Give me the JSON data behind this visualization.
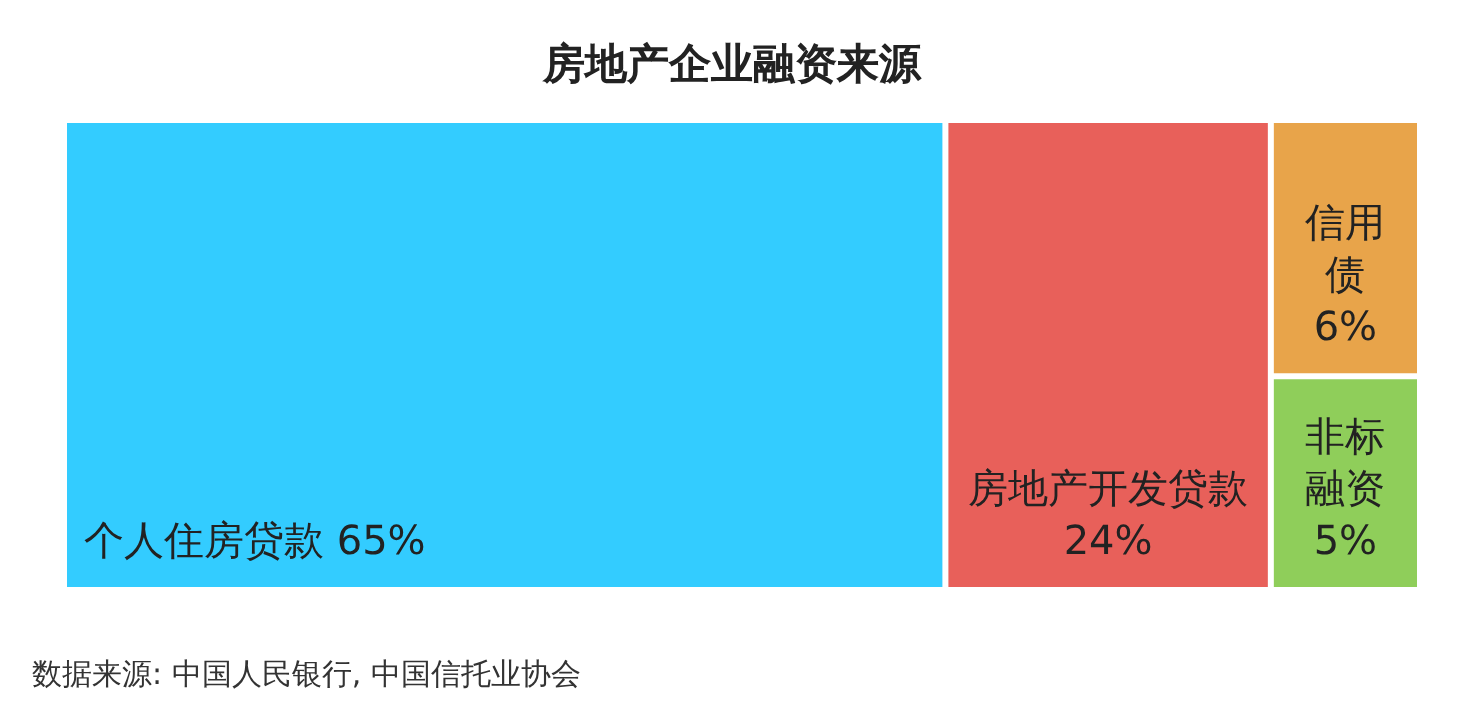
{
  "chart_data": {
    "type": "other",
    "title": "房地产企业融资来源",
    "categories": [
      "个人住房贷款",
      "房地产开发贷款",
      "信用债",
      "非标融资"
    ],
    "values": [
      65,
      24,
      6,
      5
    ],
    "value_labels": [
      "65%",
      "24%",
      "6%",
      "5%"
    ],
    "colors": [
      "#33ccff",
      "#e8605a",
      "#e8a44a",
      "#8fce5a"
    ],
    "annotations": [
      "数据来源: 中国人民银行, 中国信托业协会"
    ]
  }
}
